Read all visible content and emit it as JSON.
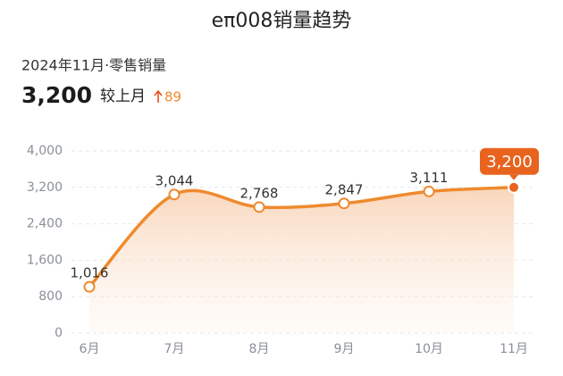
{
  "chart_data": {
    "type": "line",
    "title": "eπ008销量趋势",
    "subtitle": "2024年11月·零售销量",
    "current": {
      "value": 3200,
      "label": "3,200"
    },
    "compare_label": "较上月",
    "change": 89,
    "categories": [
      "6月",
      "7月",
      "8月",
      "9月",
      "10月",
      "11月"
    ],
    "series": [
      {
        "name": "零售销量",
        "color": "#ee8a2e",
        "values": [
          1016,
          3044,
          2768,
          2847,
          3111,
          3200
        ],
        "value_labels": [
          "1,016",
          "3,044",
          "2,768",
          "2,847",
          "3,111",
          "3,200"
        ]
      }
    ],
    "ylim": [
      0,
      4000
    ],
    "yticks": [
      0,
      {
        "value": 800,
        "label": "800"
      },
      {
        "value": 1600,
        "label": "1,600"
      },
      {
        "value": 2400,
        "label": "2,400"
      },
      {
        "value": 3200,
        "label": "3,200"
      },
      {
        "value": 4000,
        "label": "4,000"
      }
    ],
    "grid": true
  }
}
